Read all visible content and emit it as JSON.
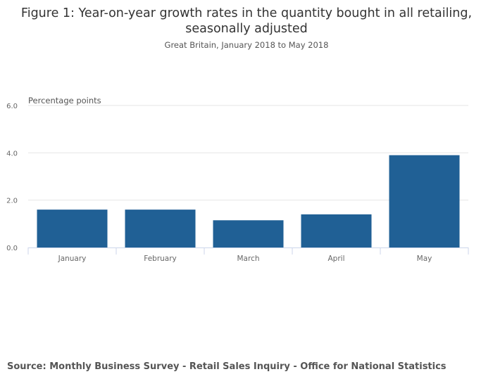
{
  "chart_data": {
    "type": "bar",
    "title": "Figure 1: Year-on-year growth rates in the quantity bought in all retailing, seasonally adjusted",
    "subtitle": "Great Britain, January 2018 to May 2018",
    "ylabel": "Percentage points",
    "xlabel": "",
    "categories": [
      "January",
      "February",
      "March",
      "April",
      "May"
    ],
    "values": [
      1.6,
      1.6,
      1.15,
      1.4,
      3.9
    ],
    "ylim": [
      0,
      6
    ],
    "yticks": [
      "0.0",
      "2.0",
      "4.0",
      "6.0"
    ],
    "ytick_values": [
      0,
      2,
      4,
      6
    ],
    "grid": true,
    "bar_color": "#206095",
    "source": "Source: Monthly Business Survey - Retail Sales Inquiry - Office for National Statistics"
  }
}
